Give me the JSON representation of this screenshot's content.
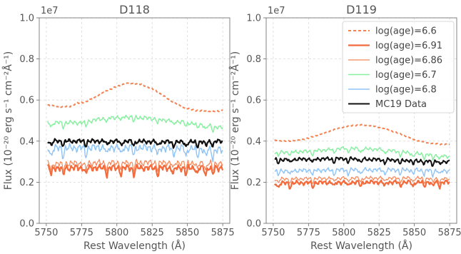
{
  "chart_data": [
    {
      "type": "line",
      "title": "D118",
      "xlabel": "Rest Wavelength (Å)",
      "ylabel": "Flux (10⁻²⁰ erg s⁻¹ cm⁻²Å⁻¹)",
      "y_multiplier_label": "1e7",
      "xlim": [
        5745,
        5880
      ],
      "ylim": [
        0.0,
        1.0
      ],
      "xticks": [
        5750,
        5775,
        5800,
        5825,
        5850,
        5875
      ],
      "xtick_labels": [
        "5750",
        "5775",
        "5800",
        "5825",
        "5850",
        "5875"
      ],
      "yticks": [
        0.0,
        0.2,
        0.4,
        0.6,
        0.8,
        1.0
      ],
      "ytick_labels": [
        "0.0",
        "0.2",
        "0.4",
        "0.6",
        "0.8",
        "1.0"
      ],
      "grid": true,
      "legend": false,
      "series": [
        {
          "name": "log(age)=6.6",
          "color": "#f4814f",
          "style": "dashed",
          "width": 2.0,
          "x": [
            5751,
            5760,
            5767,
            5772,
            5778,
            5785,
            5792,
            5800,
            5806,
            5812,
            5818,
            5825,
            5832,
            5840,
            5848,
            5855,
            5862,
            5870,
            5875
          ],
          "y": [
            0.575,
            0.565,
            0.57,
            0.585,
            0.59,
            0.615,
            0.645,
            0.665,
            0.68,
            0.68,
            0.675,
            0.655,
            0.625,
            0.59,
            0.56,
            0.55,
            0.548,
            0.545,
            0.55
          ],
          "amp": 0.004
        },
        {
          "name": "log(age)=6.91",
          "color": "#f26b3d",
          "style": "solid",
          "width": 2.2,
          "x": [
            5751,
            5800,
            5850,
            5875
          ],
          "y": [
            0.27,
            0.27,
            0.27,
            0.27
          ],
          "amp": 0.018
        },
        {
          "name": "log(age)=6.86",
          "color": "#f4875a",
          "style": "solid",
          "width": 1.2,
          "x": [
            5751,
            5800,
            5850,
            5875
          ],
          "y": [
            0.29,
            0.295,
            0.295,
            0.29
          ],
          "amp": 0.018
        },
        {
          "name": "log(age)=6.7",
          "color": "#86f2a0",
          "style": "solid",
          "width": 1.5,
          "x": [
            5751,
            5775,
            5790,
            5805,
            5825,
            5850,
            5875
          ],
          "y": [
            0.49,
            0.49,
            0.51,
            0.52,
            0.51,
            0.49,
            0.465
          ],
          "amp": 0.012
        },
        {
          "name": "log(age)=6.8",
          "color": "#8fc3f5",
          "style": "solid",
          "width": 1.4,
          "x": [
            5751,
            5800,
            5850,
            5875
          ],
          "y": [
            0.365,
            0.37,
            0.365,
            0.355
          ],
          "amp": 0.022
        },
        {
          "name": "MC19 Data",
          "color": "#111111",
          "style": "solid",
          "width": 2.2,
          "x": [
            5751,
            5800,
            5850,
            5875
          ],
          "y": [
            0.4,
            0.4,
            0.395,
            0.4
          ],
          "amp": 0.012
        }
      ]
    },
    {
      "type": "line",
      "title": "D119",
      "xlabel": "Rest Wavelength (Å)",
      "ylabel": "Flux (10⁻²⁰ erg s⁻¹ cm⁻²Å⁻¹)",
      "y_multiplier_label": "1e7",
      "xlim": [
        5745,
        5880
      ],
      "ylim": [
        0.0,
        1.0
      ],
      "xticks": [
        5750,
        5775,
        5800,
        5825,
        5850,
        5875
      ],
      "xtick_labels": [
        "5750",
        "5775",
        "5800",
        "5825",
        "5850",
        "5875"
      ],
      "yticks": [
        0.0,
        0.2,
        0.4,
        0.6,
        0.8,
        1.0
      ],
      "ytick_labels": [
        "0.0",
        "0.2",
        "0.4",
        "0.6",
        "0.8",
        "1.0"
      ],
      "grid": true,
      "legend": true,
      "legend_position": "top-right",
      "series": [
        {
          "name": "log(age)=6.6",
          "color": "#f4814f",
          "style": "dashed",
          "width": 2.0,
          "x": [
            5751,
            5760,
            5768,
            5775,
            5785,
            5795,
            5805,
            5812,
            5820,
            5830,
            5840,
            5850,
            5860,
            5868,
            5875
          ],
          "y": [
            0.405,
            0.4,
            0.405,
            0.415,
            0.435,
            0.46,
            0.475,
            0.48,
            0.475,
            0.46,
            0.435,
            0.405,
            0.39,
            0.385,
            0.385
          ],
          "amp": 0.003
        },
        {
          "name": "log(age)=6.91",
          "color": "#f26b3d",
          "style": "solid",
          "width": 2.2,
          "x": [
            5751,
            5800,
            5850,
            5875
          ],
          "y": [
            0.195,
            0.2,
            0.2,
            0.2
          ],
          "amp": 0.012
        },
        {
          "name": "log(age)=6.86",
          "color": "#f4875a",
          "style": "solid",
          "width": 1.2,
          "x": [
            5751,
            5800,
            5850,
            5875
          ],
          "y": [
            0.215,
            0.22,
            0.22,
            0.215
          ],
          "amp": 0.01
        },
        {
          "name": "log(age)=6.7",
          "color": "#86f2a0",
          "style": "solid",
          "width": 1.5,
          "x": [
            5751,
            5775,
            5800,
            5825,
            5850,
            5875
          ],
          "y": [
            0.345,
            0.35,
            0.365,
            0.36,
            0.34,
            0.325
          ],
          "amp": 0.01
        },
        {
          "name": "log(age)=6.8",
          "color": "#8fc3f5",
          "style": "solid",
          "width": 1.4,
          "x": [
            5751,
            5800,
            5850,
            5875
          ],
          "y": [
            0.255,
            0.26,
            0.26,
            0.255
          ],
          "amp": 0.012
        },
        {
          "name": "MC19 Data",
          "color": "#111111",
          "style": "solid",
          "width": 2.0,
          "x": [
            5751,
            5800,
            5850,
            5875
          ],
          "y": [
            0.31,
            0.315,
            0.305,
            0.3
          ],
          "amp": 0.01
        }
      ]
    }
  ]
}
